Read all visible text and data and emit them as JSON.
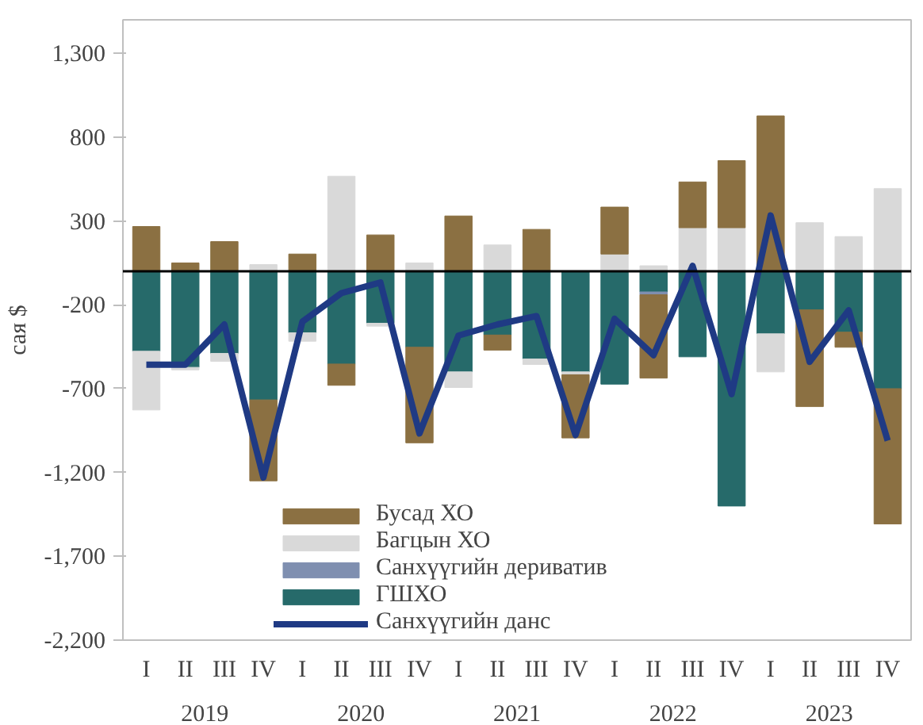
{
  "chart_data": {
    "type": "bar",
    "stacked": true,
    "ylabel": "сая $",
    "categories": [
      "I",
      "II",
      "III",
      "IV",
      "I",
      "II",
      "III",
      "IV",
      "I",
      "II",
      "III",
      "IV",
      "I",
      "II",
      "III",
      "IV",
      "I",
      "II",
      "III",
      "IV"
    ],
    "annotations": [
      "2019",
      "2020",
      "2021",
      "2022",
      "2023"
    ],
    "series": [
      {
        "name": "ГШХО",
        "color": "#266a6a",
        "values": [
          -477,
          -573,
          -490,
          -767,
          -367,
          -553,
          -310,
          -453,
          -600,
          -380,
          -523,
          -600,
          -673,
          -123,
          -510,
          -1400,
          -373,
          -230,
          -363,
          -700
        ]
      },
      {
        "name": "Санхүүгийн дериватив",
        "color": "#7f8fb0",
        "values": [
          0,
          0,
          0,
          0,
          0,
          0,
          0,
          0,
          0,
          null,
          0,
          0,
          0,
          -17,
          0,
          0,
          0,
          null,
          null,
          0
        ]
      },
      {
        "name": "Багцын ХО",
        "color": "#d9d9d9",
        "values": [
          -350,
          -15,
          -47,
          40,
          -50,
          567,
          -17,
          50,
          -93,
          157,
          -33,
          -17,
          103,
          33,
          260,
          260,
          -227,
          290,
          207,
          493
        ]
      },
      {
        "name": "Бусад ХО",
        "color": "#8b7042",
        "values": [
          267,
          50,
          177,
          -483,
          103,
          -127,
          217,
          -570,
          330,
          -90,
          250,
          -377,
          280,
          -497,
          273,
          400,
          927,
          -577,
          -90,
          -807
        ]
      },
      {
        "name": "Санхүүгийн данс",
        "type": "line",
        "color": "#1f3a84",
        "values": [
          -557,
          -557,
          -317,
          -1230,
          -300,
          -130,
          -67,
          -967,
          -383,
          -317,
          -267,
          -977,
          -283,
          -500,
          33,
          -733,
          333,
          -540,
          -233,
          -1010
        ]
      }
    ],
    "ylim": [
      -2200,
      1500
    ],
    "yticks": [
      {
        "value": -2200,
        "label": "-2,200"
      },
      {
        "value": -1700,
        "label": "-1,700"
      },
      {
        "value": -1200,
        "label": "-1,200"
      },
      -700,
      -200,
      300,
      800,
      {
        "value": 1300,
        "label": "1,300"
      }
    ],
    "ref_lines": [
      {
        "axis": "y",
        "value": 0,
        "color": "#000000"
      }
    ],
    "grid": false,
    "legend": "bottom"
  }
}
